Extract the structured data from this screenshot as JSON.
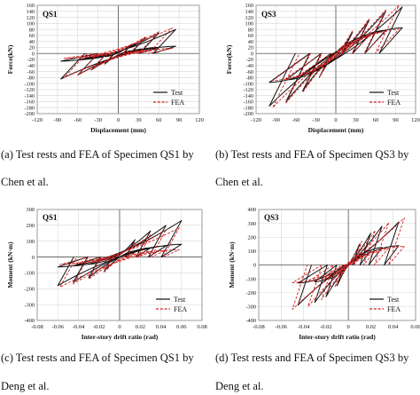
{
  "figure": {
    "caption_a_line1": "(a) Test rests and FEA of Specimen QS1 by",
    "caption_a_line2": "Chen et al.",
    "caption_b_line1": "(b) Test rests and FEA of Specimen QS3 by",
    "caption_b_line2": "Chen et al.",
    "caption_c_line1": "(c) Test rests and FEA of Specimen QS1 by",
    "caption_c_line2": "Deng et al.",
    "caption_d_line1": "(d) Test rests and FEA of Specimen QS3 by",
    "caption_d_line2": "Deng et al."
  },
  "colors": {
    "test": "#111111",
    "fea": "#d42020",
    "grid": "#d8d8d8",
    "axis": "#555555"
  },
  "chart_data": [
    {
      "type": "line",
      "title": "QS1",
      "xlabel": "Displacement (mm)",
      "ylabel": "Force(kN)",
      "xlim": [
        -120,
        120
      ],
      "ylim": [
        -200,
        160
      ],
      "xticks": [
        -120,
        -90,
        -60,
        -30,
        0,
        30,
        60,
        90,
        120
      ],
      "yticks": [
        -200,
        -180,
        -160,
        -140,
        -120,
        -100,
        -80,
        -60,
        -40,
        -20,
        0,
        20,
        40,
        60,
        80,
        100,
        120,
        140,
        160
      ],
      "grid": true,
      "legend": "bottom-right",
      "series": [
        {
          "name": "Test",
          "amplitudes": [
            20,
            40,
            60,
            85
          ],
          "pos_peaks": [
            30,
            52,
            68,
            80
          ],
          "neg_peaks": [
            -35,
            -55,
            -72,
            -85
          ],
          "pinch": 0.3
        },
        {
          "name": "FEA",
          "amplitudes": [
            20,
            40,
            60,
            80
          ],
          "pos_peaks": [
            32,
            55,
            72,
            85
          ],
          "neg_peaks": [
            -32,
            -55,
            -72,
            -80
          ],
          "pinch": 0.2
        }
      ]
    },
    {
      "type": "line",
      "title": "QS3",
      "xlabel": "Displacement (mm)",
      "ylabel": "Force(kN)",
      "xlim": [
        -120,
        120
      ],
      "ylim": [
        -200,
        160
      ],
      "xticks": [
        -120,
        -90,
        -60,
        -30,
        0,
        30,
        60,
        90,
        120
      ],
      "yticks": [
        -200,
        -180,
        -160,
        -140,
        -120,
        -100,
        -80,
        -60,
        -40,
        -20,
        0,
        20,
        40,
        60,
        80,
        100,
        120,
        140,
        160
      ],
      "grid": true,
      "legend": "bottom-right",
      "series": [
        {
          "name": "Test",
          "amplitudes": [
            25,
            50,
            75,
            100
          ],
          "pos_peaks": [
            70,
            110,
            140,
            155
          ],
          "neg_peaks": [
            -80,
            -125,
            -160,
            -175
          ],
          "pinch": 0.55
        },
        {
          "name": "FEA",
          "amplitudes": [
            25,
            50,
            75,
            95
          ],
          "pos_peaks": [
            75,
            115,
            145,
            160
          ],
          "neg_peaks": [
            -80,
            -130,
            -165,
            -180
          ],
          "pinch": 0.5
        }
      ]
    },
    {
      "type": "line",
      "title": "QS1",
      "xlabel": "Inter-story drift ratio (rad)",
      "ylabel": "Moment (kN·m)",
      "xlim": [
        -0.08,
        0.08
      ],
      "ylim": [
        -400,
        300
      ],
      "xticks": [
        -0.08,
        -0.06,
        -0.04,
        -0.02,
        0,
        0.02,
        0.04,
        0.06,
        0.08
      ],
      "yticks": [
        -400,
        -300,
        -200,
        -100,
        0,
        100,
        200,
        300
      ],
      "grid": true,
      "legend": "bottom-right",
      "series": [
        {
          "name": "Test",
          "amplitudes": [
            0.015,
            0.03,
            0.045,
            0.06
          ],
          "pos_peaks": [
            110,
            165,
            200,
            230
          ],
          "neg_peaks": [
            -90,
            -130,
            -160,
            -180
          ],
          "pinch": 0.35
        },
        {
          "name": "FEA",
          "amplitudes": [
            0.015,
            0.03,
            0.045,
            0.058
          ],
          "pos_peaks": [
            95,
            140,
            170,
            185
          ],
          "neg_peaks": [
            -95,
            -140,
            -170,
            -190
          ],
          "pinch": 0.25
        }
      ]
    },
    {
      "type": "line",
      "title": "QS3",
      "xlabel": "Inter-story drift ratio (rad)",
      "ylabel": "Moment (kN·m)",
      "xlim": [
        -0.08,
        0.06
      ],
      "ylim": [
        -400,
        400
      ],
      "xticks": [
        -0.08,
        -0.06,
        -0.04,
        -0.02,
        0,
        0.02,
        0.04,
        0.06
      ],
      "yticks": [
        -400,
        -300,
        -200,
        -100,
        0,
        100,
        200,
        300,
        400
      ],
      "grid": true,
      "legend": "bottom-right",
      "series": [
        {
          "name": "Test",
          "amplitudes": [
            0.01,
            0.02,
            0.03,
            0.045
          ],
          "pos_peaks": [
            150,
            230,
            280,
            310
          ],
          "neg_peaks": [
            -150,
            -230,
            -270,
            -290
          ],
          "pinch": 0.45
        },
        {
          "name": "FEA",
          "amplitudes": [
            0.012,
            0.024,
            0.036,
            0.05
          ],
          "pos_peaks": [
            170,
            250,
            305,
            340
          ],
          "neg_peaks": [
            -160,
            -250,
            -300,
            -320
          ],
          "pinch": 0.4
        }
      ]
    }
  ]
}
